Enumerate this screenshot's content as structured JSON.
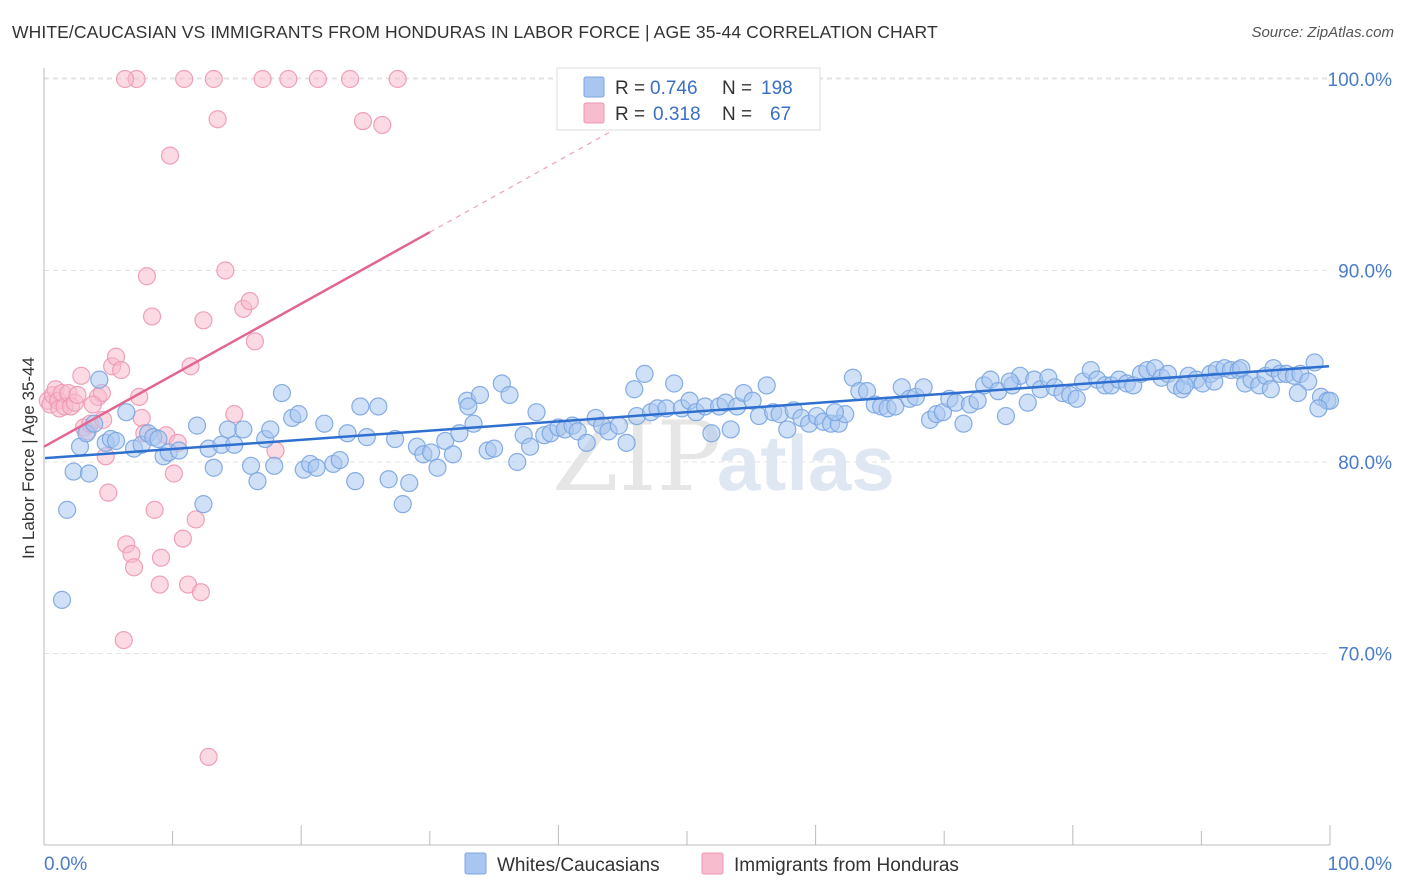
{
  "header": {
    "title": "WHITE/CAUCASIAN VS IMMIGRANTS FROM HONDURAS IN LABOR FORCE | AGE 35-44 CORRELATION CHART",
    "source": "Source: ZipAtlas.com"
  },
  "watermark": {
    "part1": "ZIP",
    "part2": "atlas"
  },
  "colors": {
    "blue_fill": "#a9c6f0",
    "blue_stroke": "#7aa5e0",
    "blue_line": "#2f6fd0",
    "pink_fill": "#f7bccd",
    "pink_stroke": "#ee97b2",
    "pink_line": "#e26592",
    "tick_text": "#4a7cc9"
  },
  "chart_data": {
    "type": "scatter",
    "title": "WHITE/CAUCASIAN VS IMMIGRANTS FROM HONDURAS IN LABOR FORCE | AGE 35-44 CORRELATION CHART",
    "xlabel": "",
    "ylabel": "In Labor Force | Age 35-44",
    "xlim": [
      0,
      100
    ],
    "ylim": [
      60,
      102
    ],
    "x_tick_labels": [
      "0.0%",
      "100.0%"
    ],
    "y_ticks": [
      70,
      80,
      90,
      100
    ],
    "y_tick_labels": [
      "70.0%",
      "80.0%",
      "90.0%",
      "100.0%"
    ],
    "grid": true,
    "legend_position": "bottom",
    "stats": [
      {
        "r_label": "R =",
        "r_value": "0.746",
        "n_label": "N =",
        "n_value": "198"
      },
      {
        "r_label": "R =",
        "r_value": "0.318",
        "n_label": "N =",
        "n_value": "67"
      }
    ],
    "series": [
      {
        "name": "Whites/Caucasians",
        "color": "#a9c6f0",
        "trend": {
          "x": [
            0,
            100
          ],
          "y": [
            80.2,
            85.0
          ]
        },
        "points": [
          [
            1.4,
            72.8
          ],
          [
            1.8,
            77.5
          ],
          [
            2.3,
            79.5
          ],
          [
            2.8,
            80.8
          ],
          [
            3.3,
            81.5
          ],
          [
            3.5,
            79.4
          ],
          [
            3.9,
            82.0
          ],
          [
            4.3,
            84.3
          ],
          [
            4.8,
            81.0
          ],
          [
            5.2,
            81.2
          ],
          [
            5.6,
            81.1
          ],
          [
            6.4,
            82.6
          ],
          [
            7.0,
            80.7
          ],
          [
            7.6,
            80.9
          ],
          [
            8.1,
            81.5
          ],
          [
            8.5,
            81.3
          ],
          [
            8.9,
            81.2
          ],
          [
            9.3,
            80.3
          ],
          [
            9.7,
            80.5
          ],
          [
            10.5,
            80.6
          ],
          [
            11.9,
            81.9
          ],
          [
            12.4,
            77.8
          ],
          [
            12.8,
            80.7
          ],
          [
            13.2,
            79.7
          ],
          [
            13.8,
            80.9
          ],
          [
            14.3,
            81.7
          ],
          [
            14.8,
            80.9
          ],
          [
            15.5,
            81.7
          ],
          [
            16.1,
            79.8
          ],
          [
            16.6,
            79.0
          ],
          [
            17.2,
            81.2
          ],
          [
            17.6,
            81.7
          ],
          [
            17.9,
            79.8
          ],
          [
            18.5,
            83.6
          ],
          [
            19.3,
            82.3
          ],
          [
            19.8,
            82.5
          ],
          [
            20.2,
            79.6
          ],
          [
            20.7,
            79.9
          ],
          [
            21.2,
            79.7
          ],
          [
            21.8,
            82.0
          ],
          [
            22.5,
            79.9
          ],
          [
            23.0,
            80.1
          ],
          [
            23.6,
            81.5
          ],
          [
            24.2,
            79.0
          ],
          [
            24.6,
            82.9
          ],
          [
            25.1,
            81.3
          ],
          [
            26.0,
            82.9
          ],
          [
            26.8,
            79.1
          ],
          [
            27.3,
            81.2
          ],
          [
            27.9,
            77.8
          ],
          [
            28.4,
            78.9
          ],
          [
            29.0,
            80.8
          ],
          [
            29.5,
            80.4
          ],
          [
            30.1,
            80.5
          ],
          [
            30.6,
            79.7
          ],
          [
            31.2,
            81.1
          ],
          [
            31.8,
            80.4
          ],
          [
            32.3,
            81.5
          ],
          [
            32.9,
            83.2
          ],
          [
            33.4,
            82.0
          ],
          [
            33.9,
            83.5
          ],
          [
            34.5,
            80.6
          ],
          [
            35.0,
            80.7
          ],
          [
            35.6,
            84.1
          ],
          [
            36.2,
            83.5
          ],
          [
            36.8,
            80.0
          ],
          [
            37.3,
            81.4
          ],
          [
            37.8,
            80.8
          ],
          [
            38.3,
            82.6
          ],
          [
            38.9,
            81.4
          ],
          [
            39.4,
            81.5
          ],
          [
            40.0,
            81.8
          ],
          [
            40.5,
            81.7
          ],
          [
            41.1,
            81.9
          ],
          [
            41.5,
            81.6
          ],
          [
            42.2,
            81.0
          ],
          [
            42.9,
            82.3
          ],
          [
            43.4,
            81.9
          ],
          [
            43.9,
            81.6
          ],
          [
            44.7,
            81.9
          ],
          [
            45.3,
            81.0
          ],
          [
            46.1,
            82.4
          ],
          [
            46.7,
            84.6
          ],
          [
            47.2,
            82.6
          ],
          [
            47.7,
            82.8
          ],
          [
            48.4,
            82.8
          ],
          [
            49.0,
            84.1
          ],
          [
            49.6,
            82.8
          ],
          [
            50.2,
            83.2
          ],
          [
            50.7,
            82.6
          ],
          [
            51.4,
            82.9
          ],
          [
            51.9,
            81.5
          ],
          [
            52.5,
            82.9
          ],
          [
            53.0,
            83.1
          ],
          [
            53.4,
            81.7
          ],
          [
            53.9,
            82.9
          ],
          [
            54.4,
            83.6
          ],
          [
            55.1,
            83.2
          ],
          [
            55.6,
            82.4
          ],
          [
            56.2,
            84.0
          ],
          [
            56.7,
            82.6
          ],
          [
            57.2,
            82.5
          ],
          [
            57.8,
            81.7
          ],
          [
            58.3,
            82.7
          ],
          [
            58.9,
            82.3
          ],
          [
            59.5,
            82.0
          ],
          [
            60.1,
            82.4
          ],
          [
            60.6,
            82.1
          ],
          [
            61.2,
            82.0
          ],
          [
            61.8,
            82.0
          ],
          [
            62.3,
            82.5
          ],
          [
            62.9,
            84.4
          ],
          [
            63.4,
            83.7
          ],
          [
            64.0,
            83.7
          ],
          [
            64.6,
            83.0
          ],
          [
            65.1,
            82.9
          ],
          [
            65.6,
            82.8
          ],
          [
            66.2,
            82.9
          ],
          [
            66.7,
            83.9
          ],
          [
            67.3,
            83.3
          ],
          [
            67.8,
            83.4
          ],
          [
            68.4,
            83.9
          ],
          [
            68.9,
            82.2
          ],
          [
            69.4,
            82.5
          ],
          [
            69.9,
            82.6
          ],
          [
            70.4,
            83.3
          ],
          [
            70.9,
            83.1
          ],
          [
            71.5,
            82.0
          ],
          [
            72.0,
            83.0
          ],
          [
            72.6,
            83.2
          ],
          [
            73.1,
            84.0
          ],
          [
            73.6,
            84.3
          ],
          [
            74.2,
            83.7
          ],
          [
            74.8,
            82.4
          ],
          [
            75.3,
            84.0
          ],
          [
            75.9,
            84.5
          ],
          [
            76.5,
            83.1
          ],
          [
            77.0,
            84.3
          ],
          [
            77.5,
            83.8
          ],
          [
            78.1,
            84.4
          ],
          [
            78.6,
            83.9
          ],
          [
            79.2,
            83.6
          ],
          [
            79.8,
            83.5
          ],
          [
            80.3,
            83.3
          ],
          [
            80.8,
            84.2
          ],
          [
            81.4,
            84.8
          ],
          [
            81.9,
            84.3
          ],
          [
            82.5,
            84.0
          ],
          [
            83.0,
            84.0
          ],
          [
            83.6,
            84.3
          ],
          [
            84.2,
            84.1
          ],
          [
            84.7,
            84.0
          ],
          [
            85.3,
            84.6
          ],
          [
            85.8,
            84.8
          ],
          [
            86.4,
            84.9
          ],
          [
            86.9,
            84.4
          ],
          [
            87.4,
            84.6
          ],
          [
            88.0,
            84.0
          ],
          [
            88.5,
            83.8
          ],
          [
            89.0,
            84.5
          ],
          [
            89.6,
            84.3
          ],
          [
            90.1,
            84.1
          ],
          [
            90.7,
            84.6
          ],
          [
            91.2,
            84.8
          ],
          [
            91.8,
            84.9
          ],
          [
            92.3,
            84.8
          ],
          [
            92.9,
            84.8
          ],
          [
            93.4,
            84.1
          ],
          [
            93.9,
            84.3
          ],
          [
            94.5,
            84.0
          ],
          [
            95.0,
            84.5
          ],
          [
            95.6,
            84.9
          ],
          [
            96.1,
            84.6
          ],
          [
            96.6,
            84.6
          ],
          [
            97.2,
            84.5
          ],
          [
            97.7,
            84.6
          ],
          [
            98.3,
            84.2
          ],
          [
            98.8,
            85.2
          ],
          [
            99.3,
            83.4
          ],
          [
            99.8,
            83.2
          ],
          [
            100.0,
            83.2
          ],
          [
            33.0,
            82.9
          ],
          [
            45.9,
            83.8
          ],
          [
            61.5,
            82.6
          ],
          [
            75.1,
            84.2
          ],
          [
            88.7,
            84.0
          ],
          [
            91.0,
            84.2
          ],
          [
            93.1,
            84.9
          ],
          [
            95.4,
            83.8
          ],
          [
            97.5,
            83.6
          ],
          [
            99.1,
            82.8
          ]
        ]
      },
      {
        "name": "Immigrants from Honduras",
        "color": "#f7bccd",
        "trend": {
          "x": [
            0,
            30
          ],
          "y": [
            80.8,
            92.0
          ]
        },
        "trend_ext": {
          "x": [
            30,
            45
          ],
          "y": [
            92.0,
            97.6
          ]
        },
        "points": [
          [
            0.3,
            83.2
          ],
          [
            0.5,
            83.0
          ],
          [
            0.7,
            83.5
          ],
          [
            0.9,
            83.8
          ],
          [
            1.1,
            83.2
          ],
          [
            1.2,
            82.8
          ],
          [
            1.4,
            83.6
          ],
          [
            1.6,
            82.9
          ],
          [
            1.9,
            83.6
          ],
          [
            2.1,
            82.9
          ],
          [
            2.4,
            83.1
          ],
          [
            2.6,
            83.5
          ],
          [
            2.9,
            84.5
          ],
          [
            3.1,
            81.8
          ],
          [
            3.4,
            81.6
          ],
          [
            3.6,
            82.0
          ],
          [
            4.2,
            83.4
          ],
          [
            4.5,
            83.6
          ],
          [
            4.8,
            80.3
          ],
          [
            5.0,
            78.4
          ],
          [
            5.3,
            85.0
          ],
          [
            5.6,
            85.5
          ],
          [
            6.0,
            84.8
          ],
          [
            6.4,
            75.7
          ],
          [
            6.8,
            75.2
          ],
          [
            7.0,
            74.5
          ],
          [
            7.4,
            83.4
          ],
          [
            7.6,
            82.3
          ],
          [
            7.8,
            81.5
          ],
          [
            8.0,
            89.7
          ],
          [
            8.4,
            87.6
          ],
          [
            8.6,
            77.5
          ],
          [
            9.0,
            73.6
          ],
          [
            9.1,
            75.0
          ],
          [
            9.5,
            81.4
          ],
          [
            9.8,
            96.0
          ],
          [
            10.1,
            79.4
          ],
          [
            10.4,
            81.0
          ],
          [
            10.8,
            76.0
          ],
          [
            11.2,
            73.6
          ],
          [
            11.4,
            85.0
          ],
          [
            11.8,
            77.0
          ],
          [
            12.2,
            73.2
          ],
          [
            12.4,
            87.4
          ],
          [
            13.2,
            100.0
          ],
          [
            13.5,
            97.9
          ],
          [
            14.1,
            90.0
          ],
          [
            14.8,
            82.5
          ],
          [
            15.5,
            88.0
          ],
          [
            16.0,
            88.4
          ],
          [
            16.4,
            86.3
          ],
          [
            17.0,
            100.0
          ],
          [
            18.0,
            80.6
          ],
          [
            19.0,
            100.0
          ],
          [
            21.3,
            100.0
          ],
          [
            23.8,
            100.0
          ],
          [
            24.8,
            97.8
          ],
          [
            26.3,
            97.6
          ],
          [
            27.5,
            100.0
          ],
          [
            10.9,
            100.0
          ],
          [
            7.2,
            100.0
          ],
          [
            6.3,
            100.0
          ],
          [
            12.8,
            64.6
          ],
          [
            6.2,
            70.7
          ],
          [
            3.8,
            83.0
          ],
          [
            4.6,
            82.2
          ]
        ]
      }
    ]
  }
}
